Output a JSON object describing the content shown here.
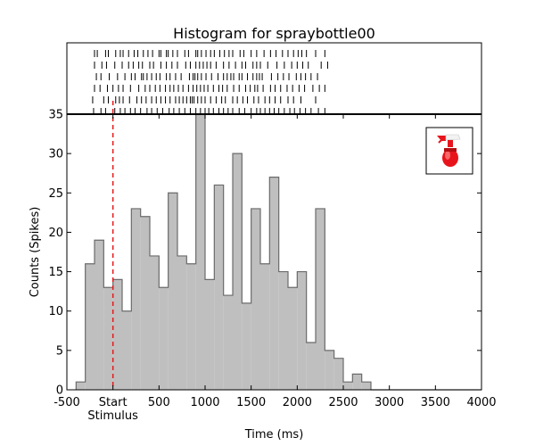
{
  "chart_data": {
    "type": "bar",
    "title": "Histogram for spraybottle00",
    "xlabel": "Time (ms)",
    "ylabel": "Counts (Spikes)",
    "xlim": [
      -500,
      4000
    ],
    "ylim": [
      0,
      35
    ],
    "bin_width_ms": 100,
    "x_tick_labels": [
      {
        "value": -500,
        "label": "-500"
      },
      {
        "value": 0,
        "label": "Start"
      },
      {
        "value": 500,
        "label": "500"
      },
      {
        "value": 1000,
        "label": "1000"
      },
      {
        "value": 1500,
        "label": "1500"
      },
      {
        "value": 2000,
        "label": "2000"
      },
      {
        "value": 2500,
        "label": "2500"
      },
      {
        "value": 3000,
        "label": "3000"
      },
      {
        "value": 3500,
        "label": "3500"
      },
      {
        "value": 4000,
        "label": "4000"
      }
    ],
    "stimulus_label": "Stimulus",
    "stimulus_time": 0,
    "y_ticks": [
      0,
      5,
      10,
      15,
      20,
      25,
      30,
      35
    ],
    "bins_start": [
      -400,
      -300,
      -200,
      -100,
      0,
      100,
      200,
      300,
      400,
      500,
      600,
      700,
      800,
      900,
      1000,
      1100,
      1200,
      1300,
      1400,
      1500,
      1600,
      1700,
      1800,
      1900,
      2000,
      2100,
      2200,
      2300,
      2400,
      2500,
      2600,
      2700,
      2800,
      2900,
      3000,
      3100,
      3200,
      3300,
      3400,
      3500,
      3600,
      3700,
      3800,
      3900
    ],
    "values": [
      1,
      16,
      19,
      13,
      14,
      10,
      23,
      22,
      17,
      13,
      25,
      17,
      16,
      35,
      14,
      26,
      12,
      30,
      11,
      23,
      16,
      27,
      15,
      13,
      15,
      6,
      23,
      5,
      4,
      1,
      2,
      1,
      0,
      0,
      0,
      0,
      0,
      0,
      0,
      0,
      0,
      0,
      0,
      0
    ],
    "raster_trials": [
      [
        -200,
        -170,
        -80,
        -50,
        30,
        80,
        110,
        170,
        230,
        270,
        330,
        380,
        430,
        500,
        520,
        580,
        600,
        650,
        700,
        780,
        820,
        900,
        920,
        960,
        1010,
        1060,
        1100,
        1160,
        1210,
        1260,
        1300,
        1380,
        1420,
        1500,
        1560,
        1640,
        1710,
        1770,
        1840,
        1900,
        1960,
        2010,
        2050,
        2100,
        2200,
        2300
      ],
      [
        -200,
        -120,
        -70,
        20,
        100,
        170,
        220,
        280,
        320,
        400,
        440,
        520,
        580,
        640,
        700,
        790,
        840,
        900,
        940,
        980,
        1020,
        1060,
        1120,
        1200,
        1260,
        1330,
        1400,
        1440,
        1520,
        1560,
        1600,
        1680,
        1780,
        1860,
        1940,
        2000,
        2060,
        2120,
        2260,
        2330
      ],
      [
        -180,
        -130,
        -40,
        50,
        130,
        200,
        240,
        310,
        330,
        370,
        420,
        470,
        510,
        580,
        620,
        680,
        740,
        830,
        870,
        890,
        920,
        960,
        1010,
        1070,
        1140,
        1200,
        1240,
        1280,
        1310,
        1370,
        1400,
        1460,
        1520,
        1560,
        1590,
        1620,
        1720,
        1790,
        1850,
        1910,
        1990,
        2040,
        2090,
        2150,
        2220
      ],
      [
        -200,
        -140,
        -60,
        0,
        60,
        110,
        190,
        280,
        350,
        400,
        460,
        510,
        570,
        620,
        660,
        710,
        760,
        820,
        870,
        910,
        950,
        990,
        1030,
        1090,
        1150,
        1190,
        1240,
        1310,
        1370,
        1440,
        1490,
        1540,
        1570,
        1630,
        1710,
        1760,
        1820,
        1890,
        1950,
        2020,
        2080,
        2170,
        2240,
        2300
      ],
      [
        -220,
        -100,
        -50,
        30,
        70,
        110,
        180,
        260,
        310,
        360,
        420,
        470,
        520,
        570,
        620,
        680,
        720,
        760,
        800,
        840,
        860,
        880,
        920,
        960,
        1000,
        1060,
        1120,
        1180,
        1220,
        1300,
        1350,
        1410,
        1460,
        1530,
        1580,
        1650,
        1700,
        1760,
        1820,
        1900,
        1960,
        2040,
        2200
      ],
      [
        -210,
        -130,
        -80,
        20,
        80,
        130,
        190,
        240,
        300,
        370,
        420,
        480,
        540,
        610,
        660,
        720,
        780,
        840,
        900,
        950,
        1000,
        1040,
        1090,
        1150,
        1200,
        1250,
        1300,
        1370,
        1430,
        1500,
        1560,
        1600,
        1650,
        1700,
        1750,
        1800,
        1860,
        1920,
        1970,
        2030,
        2090,
        2150,
        2230,
        2300
      ]
    ],
    "legend": {
      "placement": "top-right",
      "icon": "spray-bottle-icon"
    },
    "colors": {
      "fill": "#bfbfbf",
      "edge": "#6b6b6b",
      "stimulus_line": "#e31a1c",
      "raster": "#000000",
      "bottle": "#e8141c"
    },
    "grid": false
  }
}
